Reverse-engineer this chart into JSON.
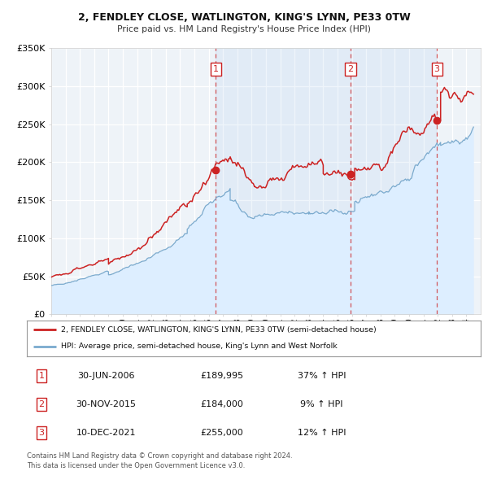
{
  "title1": "2, FENDLEY CLOSE, WATLINGTON, KING'S LYNN, PE33 0TW",
  "title2": "Price paid vs. HM Land Registry's House Price Index (HPI)",
  "bg_color": "#ffffff",
  "plot_bg_color": "#eef3f8",
  "grid_color": "#ffffff",
  "red_color": "#cc2222",
  "blue_color": "#7aaace",
  "blue_fill": "#ddeeff",
  "ylim": [
    0,
    350000
  ],
  "yticks": [
    0,
    50000,
    100000,
    150000,
    200000,
    250000,
    300000,
    350000
  ],
  "ytick_labels": [
    "£0",
    "£50K",
    "£100K",
    "£150K",
    "£200K",
    "£250K",
    "£300K",
    "£350K"
  ],
  "transactions": [
    {
      "num": 1,
      "date_str": "30-JUN-2006",
      "date_x": 2006.5,
      "price": 189995,
      "pct": "37%",
      "dir": "↑"
    },
    {
      "num": 2,
      "date_str": "30-NOV-2015",
      "date_x": 2015.917,
      "price": 184000,
      "pct": "9%",
      "dir": "↑"
    },
    {
      "num": 3,
      "date_str": "10-DEC-2021",
      "date_x": 2021.94,
      "price": 255000,
      "pct": "12%",
      "dir": "↑"
    }
  ],
  "legend_line1": "2, FENDLEY CLOSE, WATLINGTON, KING'S LYNN, PE33 0TW (semi-detached house)",
  "legend_line2": "HPI: Average price, semi-detached house, King's Lynn and West Norfolk",
  "footnote1": "Contains HM Land Registry data © Crown copyright and database right 2024.",
  "footnote2": "This data is licensed under the Open Government Licence v3.0.",
  "xmin": 1995,
  "xmax": 2025
}
